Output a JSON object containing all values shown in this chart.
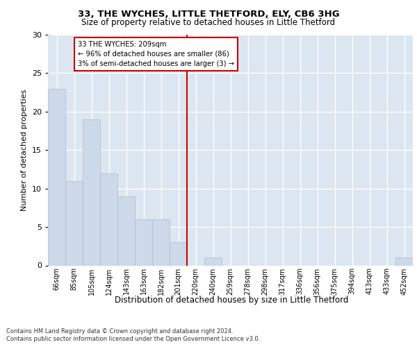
{
  "title1": "33, THE WYCHES, LITTLE THETFORD, ELY, CB6 3HG",
  "title2": "Size of property relative to detached houses in Little Thetford",
  "xlabel": "Distribution of detached houses by size in Little Thetford",
  "ylabel": "Number of detached properties",
  "bar_labels": [
    "66sqm",
    "85sqm",
    "105sqm",
    "124sqm",
    "143sqm",
    "163sqm",
    "182sqm",
    "201sqm",
    "220sqm",
    "240sqm",
    "259sqm",
    "278sqm",
    "298sqm",
    "317sqm",
    "336sqm",
    "356sqm",
    "375sqm",
    "394sqm",
    "413sqm",
    "433sqm",
    "452sqm"
  ],
  "bar_values": [
    23,
    11,
    19,
    12,
    9,
    6,
    6,
    3,
    0,
    1,
    0,
    0,
    0,
    0,
    0,
    0,
    0,
    0,
    0,
    0,
    1
  ],
  "bar_color": "#ccd9e8",
  "bar_edgecolor": "#aabccc",
  "bg_color": "#dce6f0",
  "grid_color": "#ffffff",
  "vline_x_bar": 7,
  "vline_color": "#cc0000",
  "annotation_text": "33 THE WYCHES: 209sqm\n← 96% of detached houses are smaller (86)\n3% of semi-detached houses are larger (3) →",
  "annotation_box_color": "#cc0000",
  "ylim": [
    0,
    30
  ],
  "yticks": [
    0,
    5,
    10,
    15,
    20,
    25,
    30
  ],
  "footer1": "Contains HM Land Registry data © Crown copyright and database right 2024.",
  "footer2": "Contains public sector information licensed under the Open Government Licence v3.0."
}
